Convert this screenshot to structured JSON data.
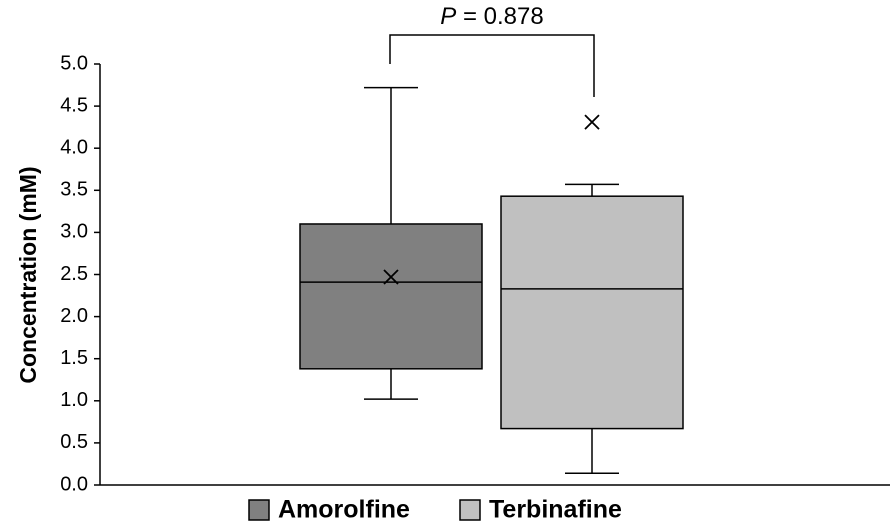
{
  "chart_data": {
    "type": "box",
    "y_label": "Concentration (mM)",
    "annotation": {
      "symbol": "P",
      "text": "= 0.878"
    },
    "ylim": [
      0,
      5
    ],
    "yticks": [
      {
        "value": 0,
        "label": "0.0"
      },
      {
        "value": 0.5,
        "label": "0.5"
      },
      {
        "value": 1,
        "label": "1.0"
      },
      {
        "value": 1.5,
        "label": "1.5"
      },
      {
        "value": 2,
        "label": "2.0"
      },
      {
        "value": 2.5,
        "label": "2.5"
      },
      {
        "value": 3,
        "label": "3.0"
      },
      {
        "value": 3.5,
        "label": "3.5"
      },
      {
        "value": 4,
        "label": "4.0"
      },
      {
        "value": 4.5,
        "label": "4.5"
      },
      {
        "value": 5,
        "label": "5.0"
      }
    ],
    "series": [
      {
        "name": "Amorolfine",
        "color": "#808080",
        "whisker_low": 1.02,
        "q1": 1.38,
        "median": 2.41,
        "q3": 3.1,
        "whisker_high": 4.72,
        "mean": 2.47
      },
      {
        "name": "Terbinafine",
        "color": "#c0c0c0",
        "whisker_low": 0.14,
        "q1": 0.67,
        "median": 2.33,
        "q3": 3.43,
        "whisker_high": 3.57,
        "outliers": [
          4.31
        ]
      }
    ]
  }
}
